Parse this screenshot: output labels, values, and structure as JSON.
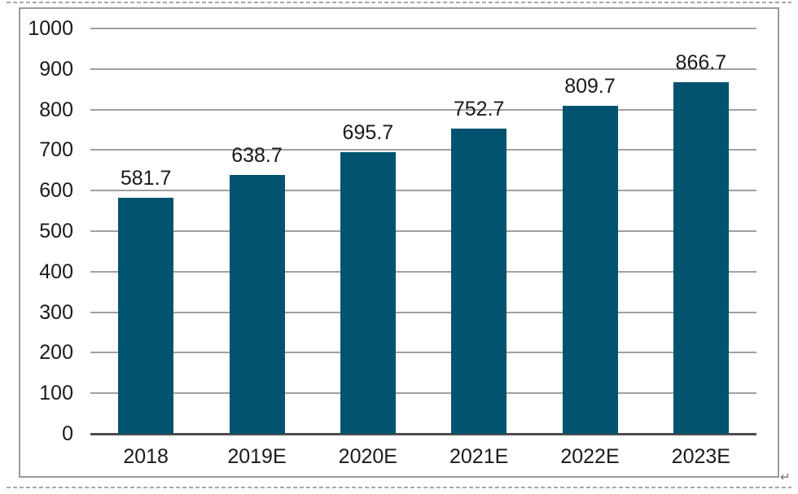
{
  "document": {
    "paragraph_mark": "↵"
  },
  "chart_data": {
    "type": "bar",
    "title": "",
    "xlabel": "",
    "ylabel": "",
    "categories": [
      "2018",
      "2019E",
      "2020E",
      "2021E",
      "2022E",
      "2023E"
    ],
    "values": [
      581.7,
      638.7,
      695.7,
      752.7,
      809.7,
      866.7
    ],
    "data_labels": [
      "581.7",
      "638.7",
      "695.7",
      "752.7",
      "809.7",
      "866.7"
    ],
    "ylim": [
      0,
      1000
    ],
    "ytick_interval": 100,
    "yticks": [
      0,
      100,
      200,
      300,
      400,
      500,
      600,
      700,
      800,
      900,
      1000
    ],
    "grid": true,
    "legend": "none",
    "colors": {
      "bar": "#02536F",
      "gridline": "#A0A0A0",
      "axis_line": "#4D4D4D",
      "text": "#1A1A1A",
      "frame_border": "#9A9A9A"
    }
  }
}
